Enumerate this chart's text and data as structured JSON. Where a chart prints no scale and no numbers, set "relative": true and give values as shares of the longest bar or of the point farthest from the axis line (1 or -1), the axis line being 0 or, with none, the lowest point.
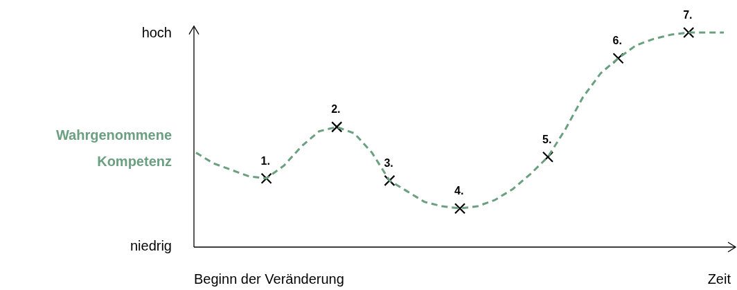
{
  "chart_data": {
    "type": "line",
    "ylabel": "Wahrgenommene Kompetenz",
    "xlabel": "Zeit",
    "annotations": [
      "hoch",
      "niedrig",
      "Beginn der Veränderung",
      {
        "text": "1.",
        "y": 0.32
      },
      {
        "text": "2.",
        "y": 0.56
      },
      {
        "text": "3.",
        "y": 0.31
      },
      {
        "text": "4.",
        "y": 0.18
      },
      {
        "text": "5.",
        "y": 0.42
      },
      {
        "text": "6.",
        "y": 0.88
      },
      {
        "text": "7.",
        "y": 1.0
      }
    ],
    "categories": [
      null,
      null,
      null,
      null,
      null,
      null,
      null,
      null,
      null,
      null,
      null,
      null,
      null,
      null,
      null,
      null,
      null,
      null,
      null,
      null,
      null,
      null,
      null,
      null,
      null,
      null,
      null,
      null,
      null,
      null,
      null
    ],
    "relative": true,
    "line_style": "dashed",
    "series": [
      {
        "color": "#6a9f80",
        "values": [
          0.44,
          0.39,
          0.36,
          0.33,
          0.32,
          0.38,
          0.47,
          0.54,
          0.56,
          0.53,
          0.44,
          0.31,
          0.26,
          0.21,
          0.19,
          0.18,
          0.19,
          0.22,
          0.27,
          0.34,
          0.42,
          0.55,
          0.7,
          0.81,
          0.88,
          0.94,
          0.97,
          0.99,
          1.0,
          1.0,
          1.0
        ]
      }
    ]
  }
}
